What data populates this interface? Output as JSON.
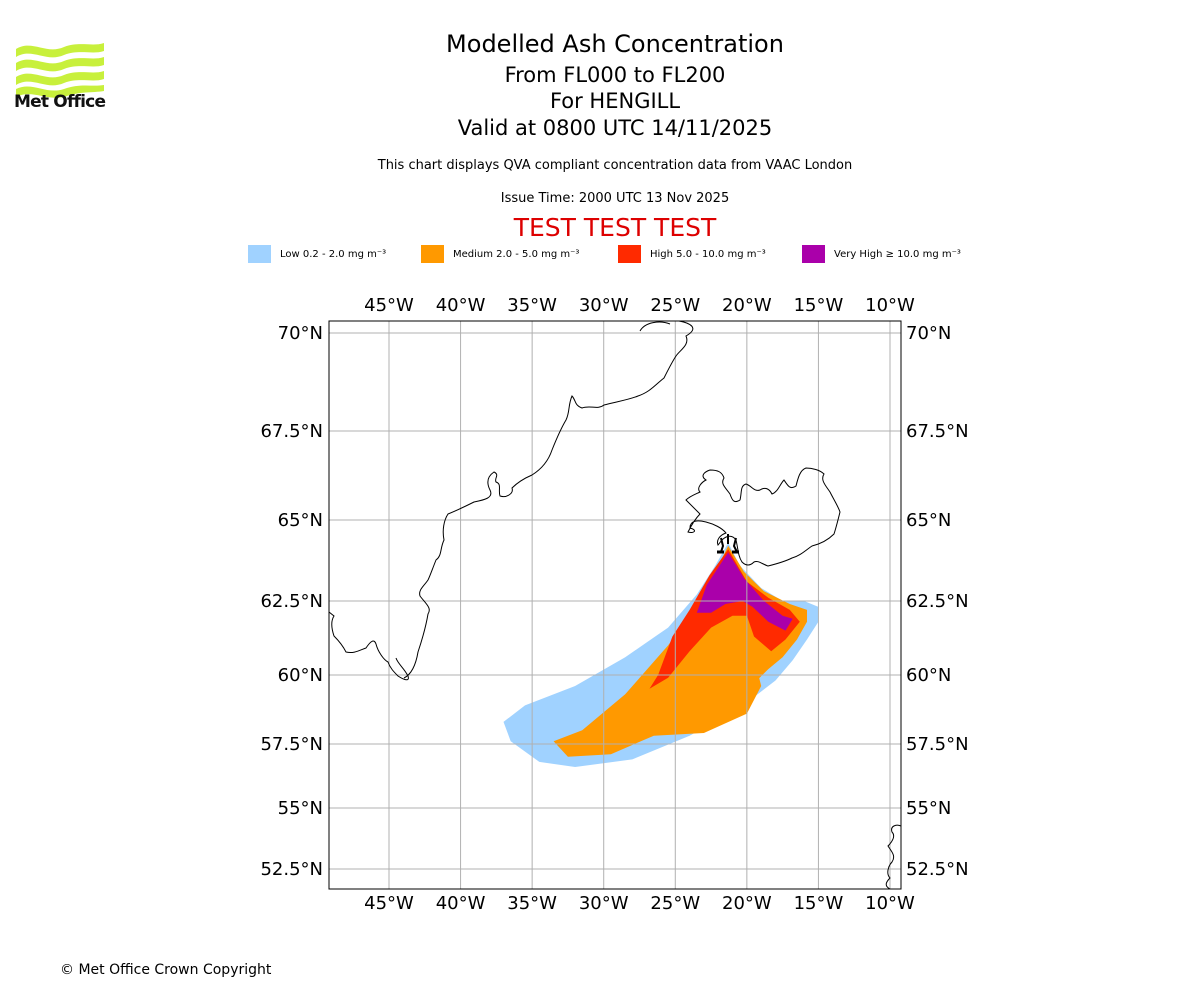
{
  "branding": {
    "logo_text": "Met Office",
    "logo_color": "#c8f03c",
    "copyright": "© Met Office Crown Copyright"
  },
  "header": {
    "title": "Modelled Ash Concentration",
    "flight_levels": "From FL000 to FL200",
    "volcano": "For HENGILL",
    "valid_time": "Valid at 0800 UTC 14/11/2025",
    "description": "This chart displays QVA compliant concentration data from VAAC London",
    "issue_time": "Issue Time: 2000 UTC 13 Nov 2025",
    "test_banner": "TEST TEST TEST",
    "test_banner_color": "#dd0000"
  },
  "legend": [
    {
      "label": "Low 0.2 - 2.0 mg m⁻³",
      "color": "#a0d2ff"
    },
    {
      "label": "Medium 2.0 - 5.0 mg m⁻³",
      "color": "#ff9900"
    },
    {
      "label": "High 5.0 - 10.0 mg m⁻³",
      "color": "#ff2a00"
    },
    {
      "label": "Very High  ≥  10.0 mg m⁻³",
      "color": "#aa00aa"
    }
  ],
  "chart_data": {
    "type": "map",
    "title": "Modelled Ash Concentration",
    "subtitle": "From FL000 to FL200 · For HENGILL · Valid at 0800 UTC 14/11/2025",
    "lon_range": [
      -49.2,
      -9.2
    ],
    "lat_range": [
      51.7,
      70.3
    ],
    "grid": true,
    "lon_ticks": [
      -45,
      -40,
      -35,
      -30,
      -25,
      -20,
      -15,
      -10
    ],
    "lon_tick_labels": [
      "45°W",
      "40°W",
      "35°W",
      "30°W",
      "25°W",
      "20°W",
      "15°W",
      "10°W"
    ],
    "lat_ticks": [
      70,
      67.5,
      65,
      62.5,
      60,
      57.5,
      55,
      52.5
    ],
    "lat_tick_labels": [
      "70°N",
      "67.5°N",
      "65°N",
      "62.5°N",
      "60°N",
      "57.5°N",
      "55°N",
      "52.5°N"
    ],
    "source_marker": {
      "name": "HENGILL",
      "lon": -21.3,
      "lat": 64.1
    },
    "contours": [
      {
        "level": "Low",
        "color": "#a0d2ff",
        "polygon": [
          [
            -21.3,
            64.3
          ],
          [
            -20.5,
            63.6
          ],
          [
            -19.0,
            62.9
          ],
          [
            -17.5,
            62.5
          ],
          [
            -16.0,
            62.5
          ],
          [
            -15.0,
            62.3
          ],
          [
            -15.0,
            61.8
          ],
          [
            -15.8,
            61.2
          ],
          [
            -16.8,
            60.5
          ],
          [
            -18.0,
            59.8
          ],
          [
            -20.5,
            58.8
          ],
          [
            -24.0,
            57.8
          ],
          [
            -28.0,
            56.9
          ],
          [
            -32.0,
            56.6
          ],
          [
            -34.5,
            56.8
          ],
          [
            -36.5,
            57.6
          ],
          [
            -37.0,
            58.3
          ],
          [
            -35.5,
            58.9
          ],
          [
            -32.0,
            59.6
          ],
          [
            -28.5,
            60.6
          ],
          [
            -25.5,
            61.6
          ],
          [
            -23.5,
            62.7
          ],
          [
            -22.2,
            63.6
          ]
        ]
      },
      {
        "level": "Medium",
        "color": "#ff9900",
        "polygon": [
          [
            -21.3,
            64.2
          ],
          [
            -20.2,
            63.4
          ],
          [
            -18.8,
            62.8
          ],
          [
            -17.0,
            62.4
          ],
          [
            -15.8,
            62.2
          ],
          [
            -15.8,
            61.8
          ],
          [
            -16.5,
            61.2
          ],
          [
            -17.5,
            60.6
          ],
          [
            -18.5,
            60.2
          ],
          [
            -19.3,
            59.8
          ],
          [
            -20.3,
            58.9
          ],
          [
            -22.5,
            58.2
          ],
          [
            -25.0,
            57.9
          ],
          [
            -24.2,
            58.6
          ],
          [
            -22.5,
            59.6
          ],
          [
            -20.5,
            60.0
          ],
          [
            -20.6,
            61.0
          ],
          [
            -19.8,
            61.2
          ],
          [
            -19.5,
            60.6
          ],
          [
            -19.0,
            59.6
          ],
          [
            -20.0,
            58.6
          ],
          [
            -23.0,
            57.9
          ],
          [
            -26.5,
            57.8
          ],
          [
            -29.5,
            57.1
          ],
          [
            -32.5,
            57.0
          ],
          [
            -33.5,
            57.6
          ],
          [
            -31.5,
            58.0
          ],
          [
            -28.5,
            59.3
          ],
          [
            -25.5,
            61.0
          ],
          [
            -23.5,
            62.3
          ],
          [
            -22.2,
            63.4
          ]
        ]
      },
      {
        "level": "High",
        "color": "#ff2a00",
        "polygon": [
          [
            -21.3,
            64.1
          ],
          [
            -20.0,
            63.1
          ],
          [
            -18.5,
            62.6
          ],
          [
            -17.0,
            62.2
          ],
          [
            -16.3,
            61.8
          ],
          [
            -17.3,
            61.2
          ],
          [
            -18.3,
            60.8
          ],
          [
            -19.5,
            61.3
          ],
          [
            -20.0,
            62.0
          ],
          [
            -21.0,
            62.0
          ],
          [
            -22.5,
            61.6
          ],
          [
            -24.0,
            60.8
          ],
          [
            -25.5,
            59.9
          ],
          [
            -26.8,
            59.5
          ],
          [
            -26.2,
            60.0
          ],
          [
            -25.2,
            61.3
          ],
          [
            -24.0,
            62.2
          ],
          [
            -22.6,
            63.3
          ]
        ]
      },
      {
        "level": "Very High",
        "color": "#aa00aa",
        "polygon": [
          [
            -21.3,
            64.0
          ],
          [
            -20.2,
            63.2
          ],
          [
            -18.8,
            62.5
          ],
          [
            -17.5,
            62.0
          ],
          [
            -16.8,
            61.9
          ],
          [
            -17.3,
            61.5
          ],
          [
            -18.5,
            61.8
          ],
          [
            -19.6,
            62.3
          ],
          [
            -20.3,
            62.5
          ],
          [
            -21.5,
            62.4
          ],
          [
            -22.5,
            62.1
          ],
          [
            -23.5,
            62.1
          ],
          [
            -22.8,
            63.0
          ]
        ]
      }
    ]
  }
}
